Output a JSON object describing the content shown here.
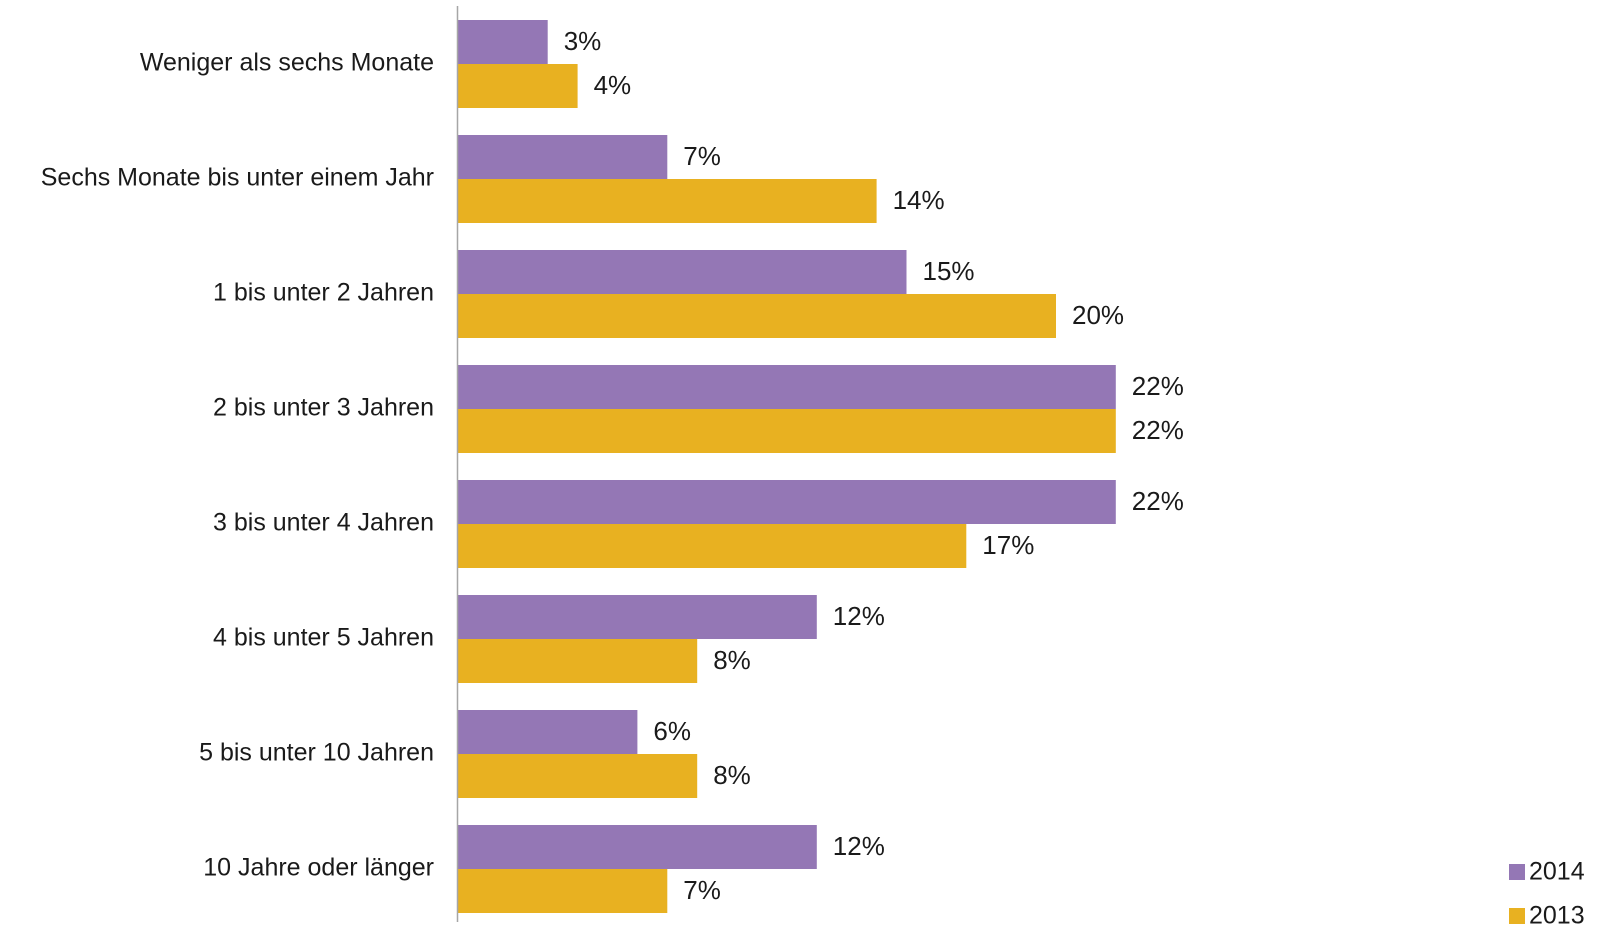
{
  "chart_data": {
    "type": "bar",
    "orientation": "horizontal",
    "categories": [
      "Weniger als sechs Monate",
      "Sechs Monate bis unter einem Jahr",
      "1 bis unter 2 Jahren",
      "2 bis unter 3 Jahren",
      "3 bis unter 4 Jahren",
      "4 bis unter 5 Jahren",
      "5 bis unter 10 Jahren",
      "10 Jahre oder länger"
    ],
    "series": [
      {
        "name": "2014",
        "color": "#9477b5",
        "values": [
          3,
          7,
          15,
          22,
          22,
          12,
          6,
          12
        ],
        "labels": [
          "3%",
          "7%",
          "15%",
          "22%",
          "22%",
          "12%",
          "6%",
          "12%"
        ]
      },
      {
        "name": "2013",
        "color": "#e8b121",
        "values": [
          4,
          14,
          20,
          22,
          17,
          8,
          8,
          7
        ],
        "labels": [
          "4%",
          "14%",
          "20%",
          "22%",
          "17%",
          "8%",
          "8%",
          "7%"
        ]
      }
    ],
    "value_unit": "%",
    "xlim": [
      0,
      38
    ],
    "axis_color": "#a6a6a6",
    "grid": false,
    "legend_position": "bottom-right",
    "title": "",
    "xlabel": "",
    "ylabel": ""
  }
}
